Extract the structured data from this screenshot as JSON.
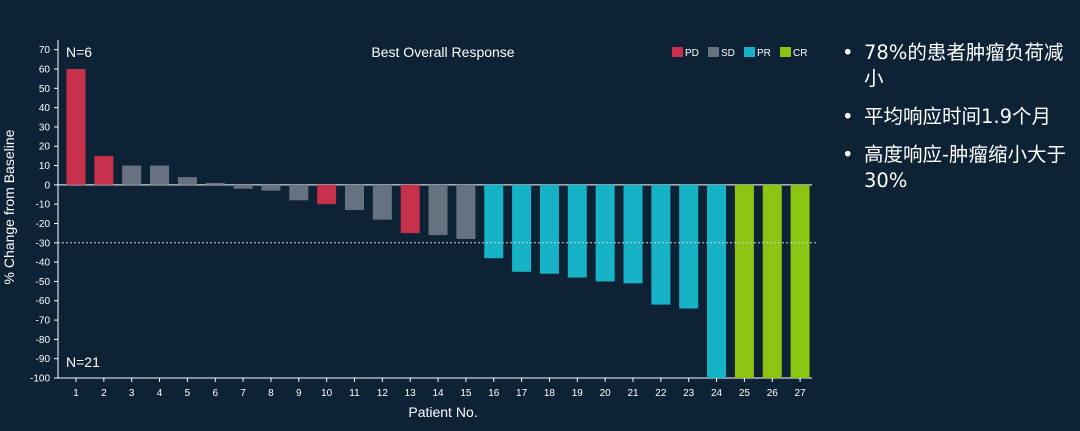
{
  "chart_data": {
    "type": "bar",
    "title": "Best Overall Response",
    "xlabel": "Patient No.",
    "ylabel": "% Change from Baseline",
    "ylim": [
      -100,
      75
    ],
    "yticks": [
      70,
      60,
      50,
      40,
      30,
      20,
      10,
      0,
      -10,
      -20,
      -30,
      -40,
      -50,
      -60,
      -70,
      -80,
      -90,
      -100
    ],
    "threshold": -30,
    "categories": [
      "1",
      "2",
      "3",
      "4",
      "5",
      "6",
      "7",
      "8",
      "9",
      "10",
      "11",
      "12",
      "13",
      "14",
      "15",
      "16",
      "17",
      "18",
      "19",
      "20",
      "21",
      "22",
      "23",
      "24",
      "25",
      "26",
      "27"
    ],
    "values": [
      60,
      15,
      10,
      10,
      4,
      1,
      -2,
      -3,
      -8,
      -10,
      -13,
      -18,
      -25,
      -26,
      -28,
      -38,
      -45,
      -46,
      -48,
      -50,
      -51,
      -62,
      -64,
      -100,
      -100,
      -100,
      -100
    ],
    "response": [
      "PD",
      "PD",
      "SD",
      "SD",
      "SD",
      "SD",
      "SD",
      "SD",
      "SD",
      "PD",
      "SD",
      "SD",
      "PD",
      "SD",
      "SD",
      "PR",
      "PR",
      "PR",
      "PR",
      "PR",
      "PR",
      "PR",
      "PR",
      "PR",
      "CR",
      "CR",
      "CR"
    ],
    "legend": [
      {
        "key": "PD",
        "label": "PD",
        "color": "#c6304a"
      },
      {
        "key": "SD",
        "label": "SD",
        "color": "#66727f"
      },
      {
        "key": "PR",
        "label": "PR",
        "color": "#16b3c7"
      },
      {
        "key": "CR",
        "label": "CR",
        "color": "#8cc413"
      }
    ],
    "annotations": {
      "top": "N=6",
      "bottom": "N=21"
    }
  },
  "bullets": [
    "78%的患者肿瘤负荷减小",
    "平均响应时间1.9个月",
    "高度响应-肿瘤缩小大于30%"
  ],
  "bullet_symbol": "•"
}
